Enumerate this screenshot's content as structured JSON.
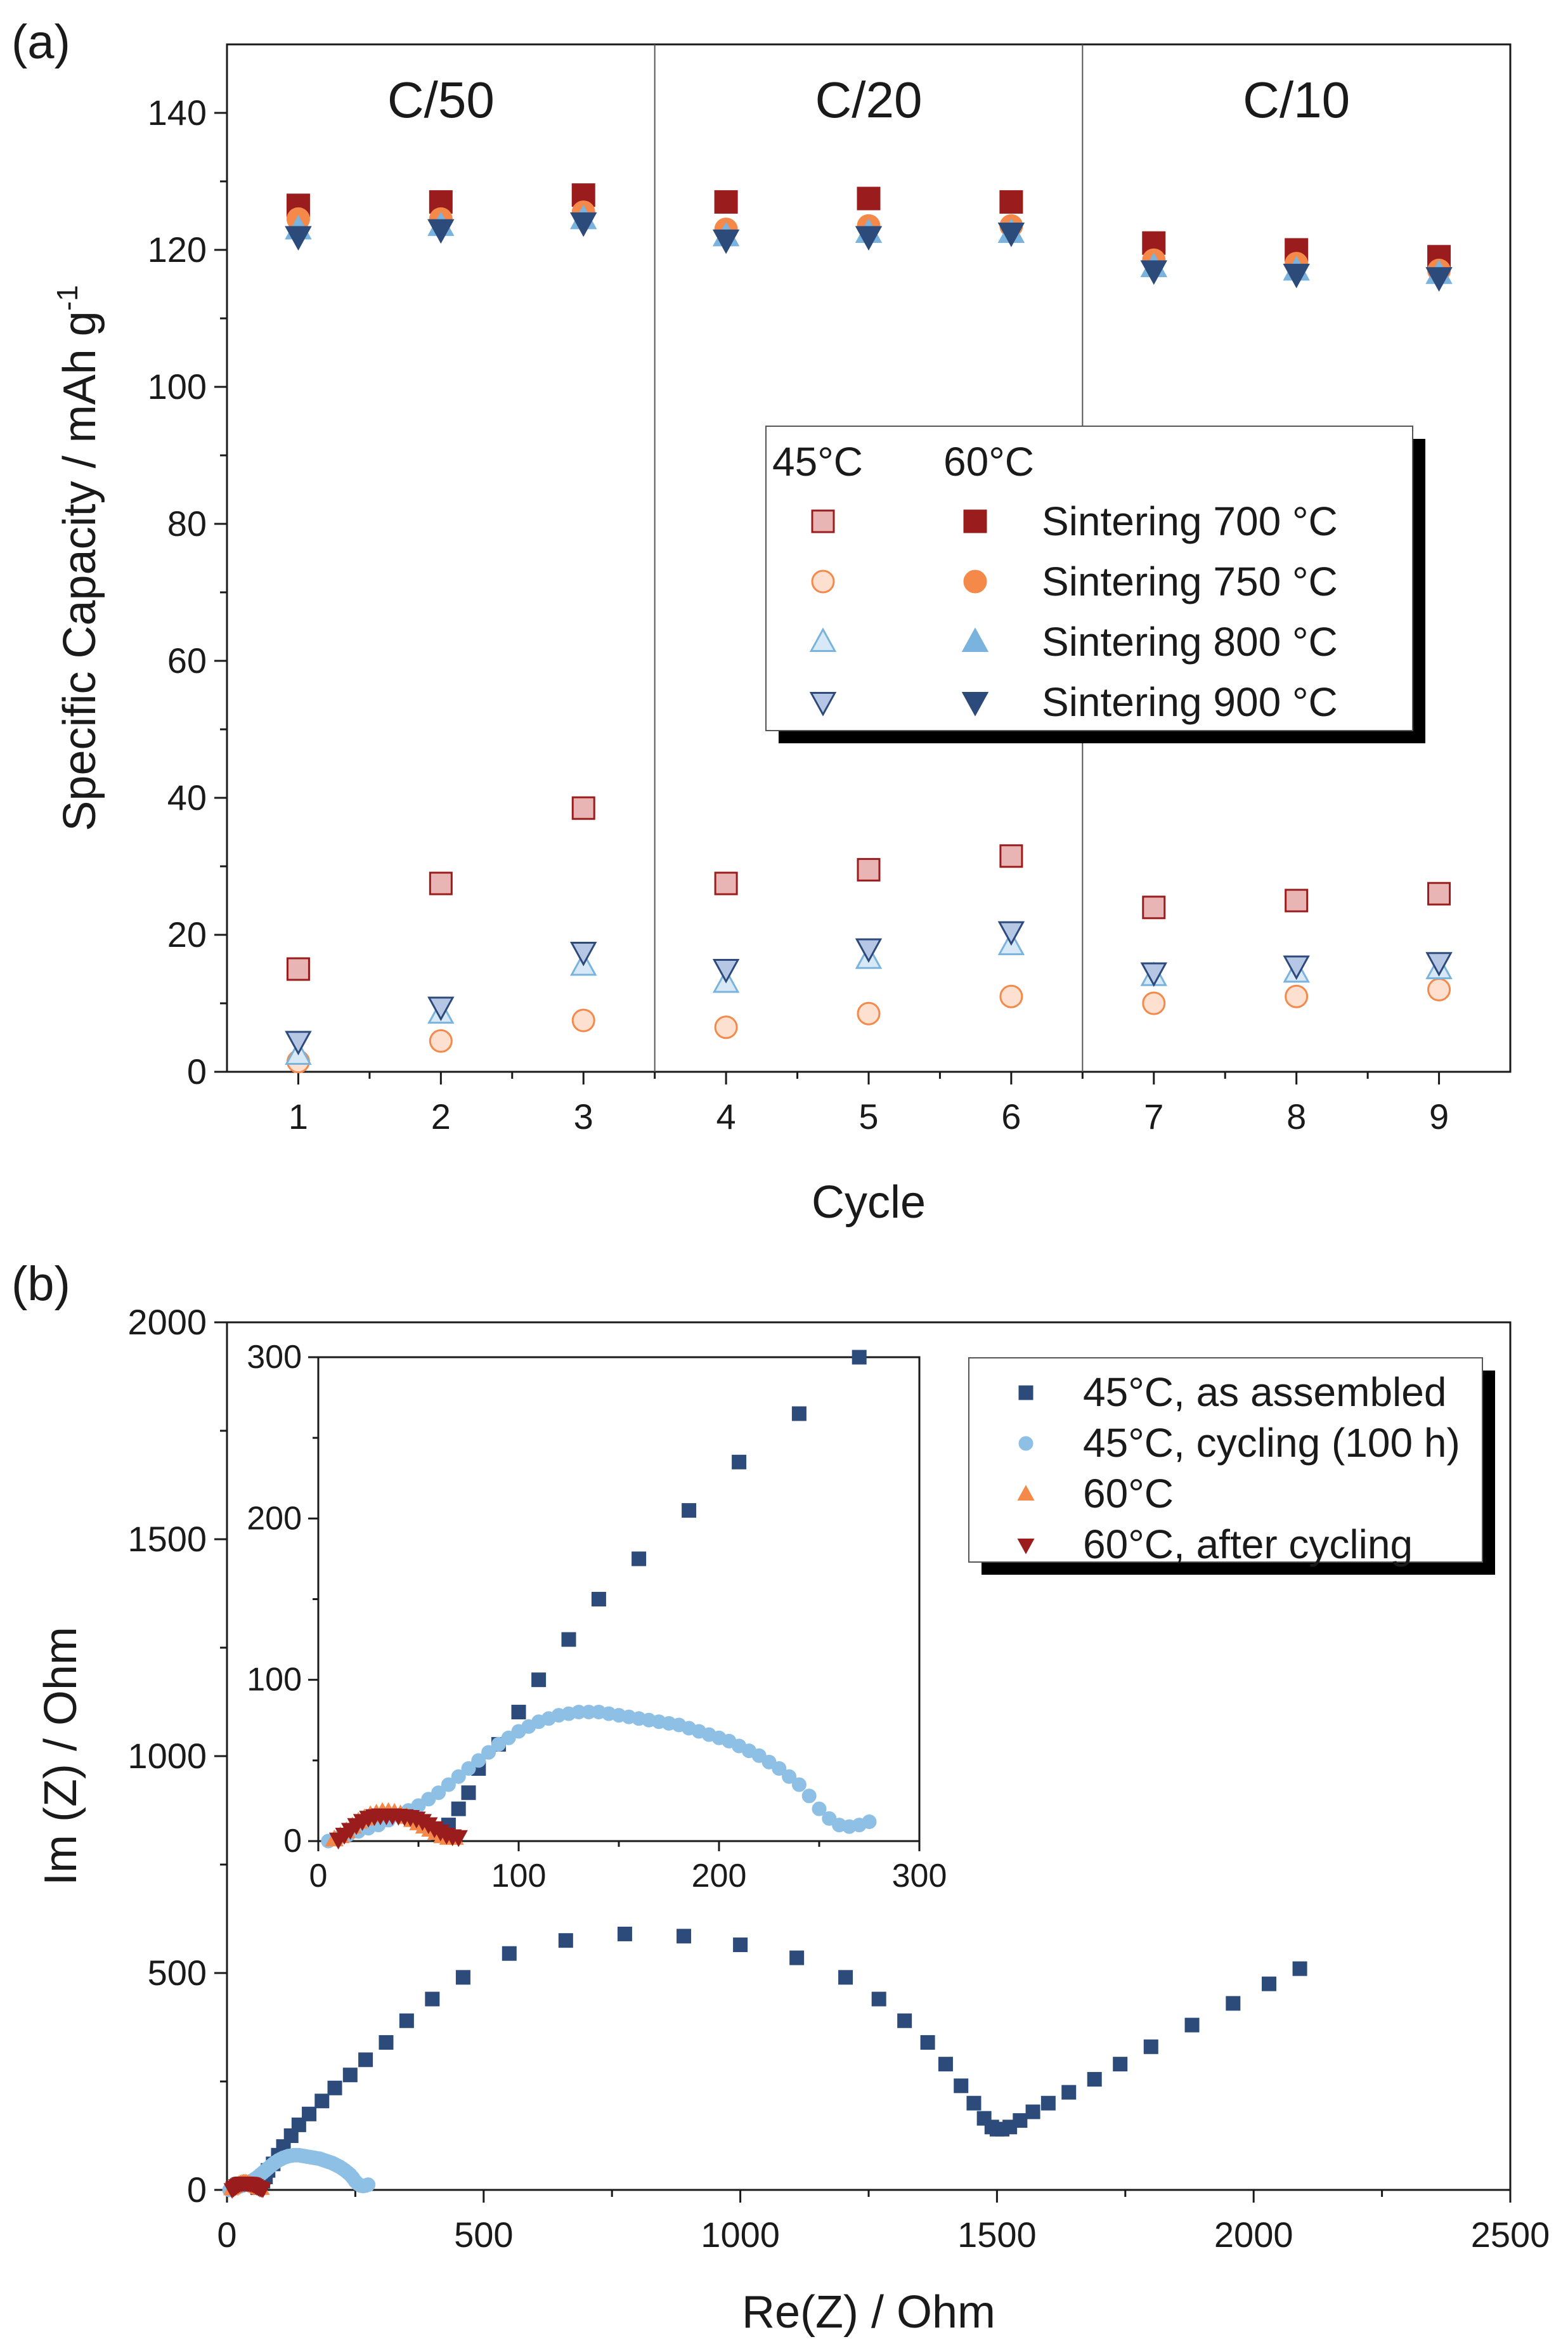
{
  "panel_labels": {
    "a": "(a)",
    "b": "(b)"
  },
  "colors": {
    "c700": "#9b1c1c",
    "c700_light": "#e8b4b4",
    "c750": "#f4894a",
    "c750_light": "#fde0d0",
    "c800": "#7ab3dd",
    "c800_light": "#d7e8f6",
    "c900": "#2c4a7a",
    "c900_light": "#b5c7e4",
    "nyq_asm": "#2c4a7a",
    "nyq_cyc": "#8ec0e6",
    "nyq_60": "#f4894a",
    "nyq_60c": "#9b1c1c"
  },
  "chart_data": [
    {
      "type": "scatter",
      "title": "",
      "xlabel": "Cycle",
      "ylabel": "Specific Capacity / mAh g-1",
      "ylabel_main": "Specific Capacity / mAh g",
      "ylabel_sup": "-1",
      "xlim": [
        0.5,
        9.5
      ],
      "ylim": [
        0,
        150
      ],
      "x_ticks": [
        "1",
        "2",
        "3",
        "4",
        "5",
        "6",
        "7",
        "8",
        "9"
      ],
      "y_ticks": [
        "0",
        "20",
        "40",
        "60",
        "80",
        "100",
        "120",
        "140"
      ],
      "rate_labels": [
        "C/50",
        "C/20",
        "C/10"
      ],
      "dividers": [
        3.5,
        6.5
      ],
      "legend": {
        "col_45": "45°C",
        "col_60": "60°C",
        "entries": [
          "Sintering 700 °C",
          "Sintering 750 °C",
          "Sintering 800 °C",
          "Sintering 900 °C"
        ]
      },
      "x": [
        1,
        2,
        3,
        4,
        5,
        6,
        7,
        8,
        9
      ],
      "series": [
        {
          "name": "45°C Sintering 700 °C",
          "marker": "square-open",
          "values": [
            15,
            27.5,
            38.5,
            27.5,
            29.5,
            31.5,
            24,
            25,
            26
          ]
        },
        {
          "name": "45°C Sintering 750 °C",
          "marker": "circle-open",
          "values": [
            1.5,
            4.5,
            7.5,
            6.5,
            8.5,
            11,
            10,
            11,
            12
          ]
        },
        {
          "name": "45°C Sintering 800 °C",
          "marker": "triangle-up-open",
          "values": [
            2.5,
            8.5,
            15.5,
            13,
            16.5,
            18.5,
            14,
            14.5,
            15
          ]
        },
        {
          "name": "45°C Sintering 900 °C",
          "marker": "triangle-down-open",
          "values": [
            4.5,
            9.5,
            17.5,
            15,
            18,
            20.5,
            14.5,
            15.5,
            16
          ]
        },
        {
          "name": "60°C Sintering 700 °C",
          "marker": "square",
          "values": [
            126.5,
            127,
            128,
            127,
            127.5,
            127,
            121,
            120,
            119
          ]
        },
        {
          "name": "60°C Sintering 750 °C",
          "marker": "circle",
          "values": [
            124.5,
            124.5,
            125.5,
            123,
            123.5,
            123.5,
            118.5,
            118,
            117
          ]
        },
        {
          "name": "60°C Sintering 800 °C",
          "marker": "triangle-up",
          "values": [
            123,
            123.5,
            124.5,
            122,
            122.5,
            122.5,
            117.5,
            117,
            116.5
          ]
        },
        {
          "name": "60°C Sintering 900 °C",
          "marker": "triangle-down",
          "values": [
            122,
            123,
            124,
            121.5,
            122,
            122.5,
            117,
            116.5,
            116
          ]
        }
      ]
    },
    {
      "type": "scatter",
      "title": "",
      "xlabel": "Re(Z) / Ohm",
      "ylabel": "Im (Z) / Ohm",
      "xlim": [
        0,
        2500
      ],
      "ylim": [
        0,
        2000
      ],
      "x_ticks": [
        "0",
        "500",
        "1000",
        "1500",
        "2000",
        "2500"
      ],
      "y_ticks": [
        "0",
        "500",
        "1000",
        "1500",
        "2000"
      ],
      "legend": [
        "45°C, as assembled",
        "45°C, cycling (100 h)",
        "60°C",
        "60°C, after cycling"
      ],
      "series": [
        {
          "name": "45°C, as assembled",
          "marker": "square",
          "x": [
            60,
            65,
            70,
            75,
            80,
            90,
            100,
            110,
            125,
            140,
            160,
            185,
            210,
            240,
            270,
            310,
            350,
            400,
            460,
            550,
            660,
            775,
            890,
            1000,
            1110,
            1205,
            1270,
            1320,
            1365,
            1400,
            1430,
            1455,
            1475,
            1490,
            1500,
            1510,
            1525,
            1545,
            1570,
            1600,
            1640,
            1690,
            1740,
            1800,
            1880,
            1960,
            2030,
            2090
          ],
          "y": [
            5,
            10,
            20,
            30,
            45,
            60,
            80,
            100,
            125,
            150,
            175,
            205,
            235,
            265,
            300,
            340,
            390,
            440,
            490,
            545,
            575,
            590,
            585,
            565,
            535,
            490,
            440,
            390,
            340,
            290,
            240,
            200,
            165,
            145,
            140,
            140,
            145,
            160,
            180,
            200,
            225,
            255,
            290,
            330,
            380,
            430,
            475,
            510
          ]
        },
        {
          "name": "45°C, cycling (100 h)",
          "marker": "circle",
          "x": [
            5,
            10,
            15,
            20,
            25,
            30,
            35,
            40,
            45,
            50,
            55,
            60,
            65,
            70,
            75,
            80,
            85,
            90,
            95,
            100,
            105,
            110,
            115,
            120,
            125,
            130,
            135,
            140,
            145,
            150,
            155,
            160,
            165,
            170,
            175,
            180,
            185,
            190,
            195,
            200,
            205,
            210,
            215,
            220,
            225,
            230,
            235,
            240,
            245,
            250,
            255,
            260,
            265,
            270,
            275
          ],
          "y": [
            0,
            2,
            4,
            6,
            8,
            10,
            13,
            16,
            19,
            22,
            26,
            30,
            35,
            40,
            45,
            50,
            55,
            60,
            64,
            68,
            71,
            74,
            76,
            78,
            79,
            80,
            80,
            80,
            79,
            78,
            77,
            76,
            75,
            74,
            73,
            72,
            70,
            68,
            66,
            64,
            62,
            59,
            56,
            53,
            49,
            45,
            40,
            35,
            28,
            20,
            14,
            10,
            9,
            10,
            12
          ]
        },
        {
          "name": "60°C",
          "marker": "triangle-up",
          "x": [
            8,
            11,
            14,
            17,
            20,
            23,
            26,
            29,
            32,
            35,
            38,
            41,
            44,
            47,
            50,
            53,
            56,
            59,
            62,
            65,
            68
          ],
          "y": [
            1,
            3,
            6,
            9,
            12,
            14,
            16,
            17,
            18,
            18,
            17.5,
            16.5,
            15,
            13,
            11,
            9,
            7,
            5,
            3,
            2,
            2
          ]
        },
        {
          "name": "60°C, after cycling",
          "marker": "triangle-down",
          "x": [
            10,
            13,
            16,
            19,
            22,
            25,
            28,
            31,
            34,
            37,
            40,
            43,
            46,
            49,
            52,
            55,
            58,
            61,
            64,
            67,
            70
          ],
          "y": [
            1,
            4,
            7,
            10,
            12.5,
            14.5,
            15.5,
            16,
            16,
            16,
            15.8,
            15.5,
            15,
            14,
            12.5,
            10.5,
            8,
            6,
            4,
            3,
            2.5
          ]
        }
      ],
      "inset": {
        "xlim": [
          0,
          300
        ],
        "ylim": [
          0,
          300
        ],
        "x_ticks": [
          "0",
          "100",
          "200",
          "300"
        ],
        "y_ticks": [
          "0",
          "100",
          "200",
          "300"
        ],
        "note": "zoom of the same four series"
      }
    }
  ]
}
